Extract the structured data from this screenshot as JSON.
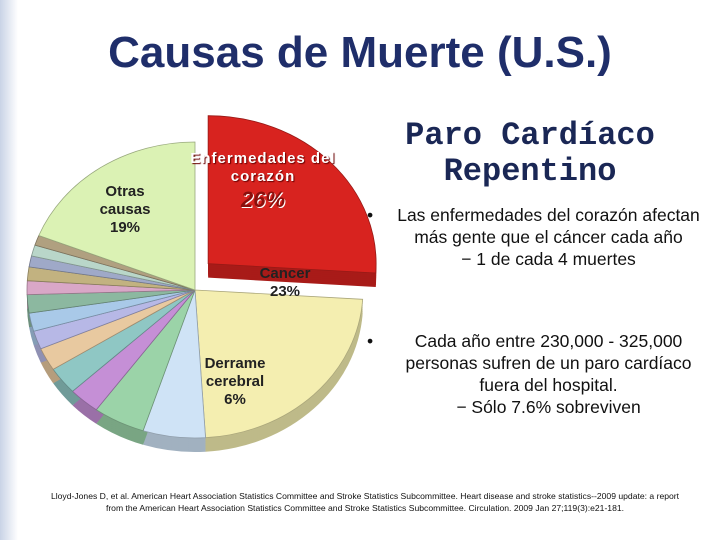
{
  "slide": {
    "title": "Causas de Muerte (U.S.)",
    "heading": "Paro Cardíaco Repentino",
    "bullets": [
      {
        "text": "Las enfermedades del corazón afectan más gente que el cáncer cada año",
        "sub": "1 de cada 4 muertes"
      },
      {
        "text": "Cada año entre 230,000 - 325,000 personas sufren de un paro cardíaco fuera del hospital.",
        "sub": "Sólo 7.6% sobreviven"
      }
    ],
    "citation": "Lloyd-Jones D, et al. American Heart Association Statistics Committee and Stroke Statistics Subcommittee. Heart disease and stroke statistics--2009 update: a report from the American Heart Association Statistics Committee and Stroke Statistics Subcommittee. Circulation. 2009 Jan 27;119(3):e21-181."
  },
  "chart_data": {
    "type": "pie",
    "categories": [
      "Enfermedades del corazón",
      "Cancer",
      "Derrame cerebral",
      null,
      null,
      null,
      null,
      null,
      null,
      null,
      null,
      null,
      null,
      null,
      null,
      "Otras causas"
    ],
    "values": [
      26,
      23,
      6,
      5,
      3,
      3,
      2.5,
      2,
      2,
      2,
      1.5,
      1.5,
      1.2,
      1.2,
      1.1,
      19
    ],
    "value_labels": [
      "26%",
      "23%",
      "6%",
      null,
      null,
      null,
      null,
      null,
      null,
      null,
      null,
      null,
      null,
      null,
      null,
      "19%"
    ],
    "colors": [
      "#d8231f",
      "#f4eeb0",
      "#cfe3f6",
      "#9bd3a8",
      "#c58fd6",
      "#8fc7c4",
      "#e8c9a0",
      "#b7b8e6",
      "#a9c9e8",
      "#8cb8a0",
      "#d9a7c7",
      "#c2b280",
      "#9fa9c8",
      "#b9d6c9",
      "#b0a080",
      "#dbf2b4"
    ],
    "exploded": 0
  }
}
